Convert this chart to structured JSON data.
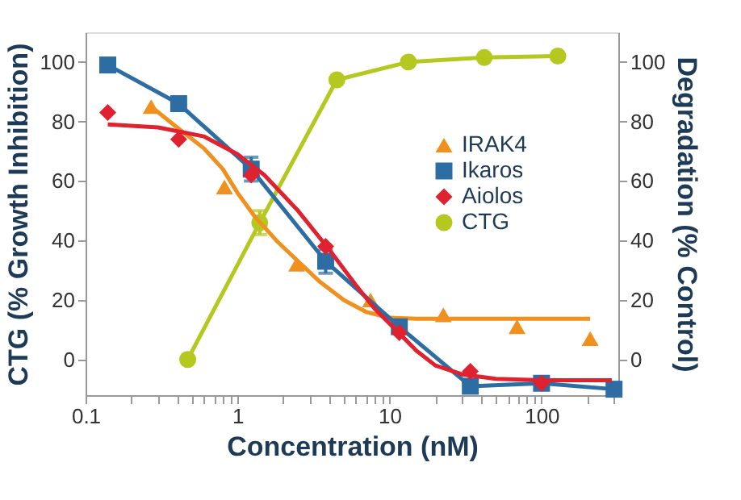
{
  "chart_data": {
    "type": "line",
    "xlabel": "Concentration (nM)",
    "ylabel": "CTG (% Growth Inhibition)",
    "y2label": "Degradation (% Control)",
    "log": "x",
    "xlim": [
      0.1,
      320
    ],
    "ylim": [
      -12,
      110
    ],
    "y2lim": [
      -12,
      110
    ],
    "xticks": [
      {
        "value": 0.1,
        "label": "0.1"
      },
      {
        "value": 0.2,
        "label": null
      },
      {
        "value": 0.3,
        "label": null
      },
      {
        "value": 0.4,
        "label": null
      },
      {
        "value": 0.5,
        "label": null
      },
      {
        "value": 0.6,
        "label": null
      },
      {
        "value": 0.7,
        "label": null
      },
      {
        "value": 0.8,
        "label": null
      },
      {
        "value": 0.9,
        "label": null
      },
      {
        "value": 1,
        "label": "1"
      },
      {
        "value": 2,
        "label": null
      },
      {
        "value": 3,
        "label": null
      },
      {
        "value": 4,
        "label": null
      },
      {
        "value": 5,
        "label": null
      },
      {
        "value": 6,
        "label": null
      },
      {
        "value": 7,
        "label": null
      },
      {
        "value": 8,
        "label": null
      },
      {
        "value": 9,
        "label": null
      },
      {
        "value": 10,
        "label": "10"
      },
      {
        "value": 20,
        "label": null
      },
      {
        "value": 30,
        "label": null
      },
      {
        "value": 40,
        "label": null
      },
      {
        "value": 50,
        "label": null
      },
      {
        "value": 60,
        "label": null
      },
      {
        "value": 70,
        "label": null
      },
      {
        "value": 80,
        "label": null
      },
      {
        "value": 90,
        "label": null
      },
      {
        "value": 100,
        "label": "100"
      },
      {
        "value": 200,
        "label": null
      },
      {
        "value": 300,
        "label": null
      }
    ],
    "yticks": [
      0,
      20,
      40,
      60,
      80,
      100
    ],
    "y2ticks": [
      0,
      20,
      40,
      60,
      80,
      100
    ],
    "grid": false,
    "legend": "right",
    "series": [
      {
        "name": "IRAK4",
        "type": "scatter",
        "axis": "y2",
        "marker": "triangle",
        "color": "#f0901e",
        "x": [
          0.27,
          0.82,
          2.45,
          7.5,
          22.6,
          69,
          209
        ],
        "values": [
          85,
          58,
          32,
          20,
          15,
          11,
          7
        ]
      },
      {
        "axis": "y2",
        "marker": "none",
        "color": "#f0901e",
        "x": [
          0.27,
          0.4,
          0.6,
          0.8,
          1.0,
          1.3,
          1.8,
          2.5,
          3.5,
          5,
          7,
          10,
          15,
          20,
          50,
          209
        ],
        "values": [
          85,
          78,
          71,
          64,
          56,
          48,
          40,
          33,
          26,
          20,
          16,
          14,
          13.7,
          13.7,
          13.7,
          13.7
        ]
      },
      {
        "name": "Ikaros",
        "axis": "y2",
        "marker": "square",
        "color": "#2e6da4",
        "x": [
          0.14,
          0.41,
          1.23,
          3.8,
          11.6,
          34,
          100,
          300
        ],
        "values": [
          99,
          86,
          64,
          33,
          11,
          -9,
          -8,
          -10
        ],
        "errors": [
          null,
          null,
          4,
          4,
          null,
          null,
          null,
          null
        ]
      },
      {
        "name": "Aiolos",
        "type": "scatter",
        "axis": "y2",
        "marker": "diamond",
        "color": "#e0212f",
        "x": [
          0.14,
          0.41,
          1.23,
          3.8,
          11.6,
          34,
          100
        ],
        "values": [
          83,
          74,
          62,
          38,
          9,
          -4,
          -8
        ]
      },
      {
        "axis": "y2",
        "marker": "none",
        "color": "#e0212f",
        "x": [
          0.14,
          0.3,
          0.6,
          1.0,
          1.5,
          2.5,
          4,
          6,
          8,
          11,
          15,
          20,
          30,
          50,
          100,
          290
        ],
        "values": [
          79,
          78,
          75,
          69,
          62,
          50,
          37,
          25,
          17,
          10,
          3,
          -2,
          -5,
          -6.5,
          -7,
          -7
        ]
      },
      {
        "name": "CTG",
        "marker": "circle",
        "color": "#b5c820",
        "x": [
          0.47,
          1.4,
          4.5,
          13.3,
          42,
          128
        ],
        "values": [
          0,
          46,
          94,
          100,
          101.5,
          102
        ],
        "errors": [
          null,
          4,
          null,
          null,
          null,
          null
        ]
      }
    ]
  }
}
